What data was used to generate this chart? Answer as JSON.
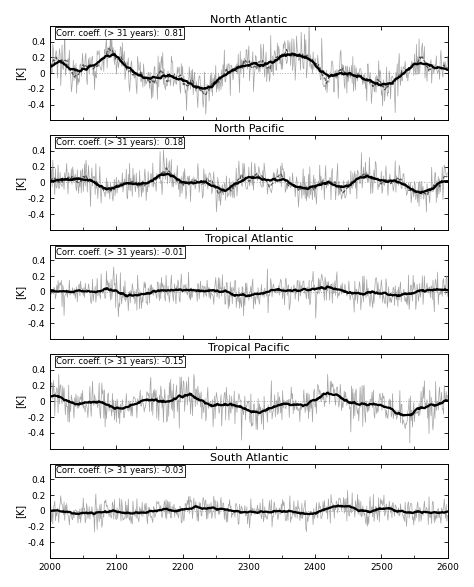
{
  "panels": [
    {
      "title": "North Atlantic",
      "corr": "Corr. coeff. (> 31 years):  0.81",
      "has_dashed": true,
      "noise_std": 0.14,
      "low_amp": 0.15,
      "low_period": 280,
      "low_phase": 0.0,
      "low_amp2": 0.08,
      "low_period2": 90,
      "low_phase2": 1.0,
      "trend": 0.0001
    },
    {
      "title": "North Pacific",
      "corr": "Corr. coeff. (> 31 years):  0.18",
      "has_dashed": true,
      "noise_std": 0.12,
      "low_amp": 0.06,
      "low_period": 150,
      "low_phase": 0.5,
      "low_amp2": 0.04,
      "low_period2": 60,
      "low_phase2": 2.0,
      "trend": 0.0
    },
    {
      "title": "Tropical Atlantic",
      "corr": "Corr. coeff. (> 31 years): -0.01",
      "has_dashed": false,
      "noise_std": 0.1,
      "low_amp": 0.03,
      "low_period": 200,
      "low_phase": 1.5,
      "low_amp2": 0.02,
      "low_period2": 80,
      "low_phase2": 0.5,
      "trend": 0.0
    },
    {
      "title": "Tropical Pacific",
      "corr": "Corr. coeff. (> 31 years): -0.15",
      "has_dashed": false,
      "noise_std": 0.13,
      "low_amp": 0.07,
      "low_period": 220,
      "low_phase": 2.0,
      "low_amp2": 0.04,
      "low_period2": 70,
      "low_phase2": 1.5,
      "trend": -8e-05
    },
    {
      "title": "South Atlantic",
      "corr": "Corr. coeff. (> 31 years): -0.03",
      "has_dashed": false,
      "noise_std": 0.09,
      "low_amp": 0.03,
      "low_period": 260,
      "low_phase": 3.0,
      "low_amp2": 0.02,
      "low_period2": 90,
      "low_phase2": 2.5,
      "trend": 0.0
    }
  ],
  "xmin": 2000,
  "xmax": 2600,
  "ymin": -0.6,
  "ymax": 0.6,
  "yticks": [
    -0.4,
    -0.2,
    0.0,
    0.2,
    0.4
  ],
  "ytick_labels": [
    "-0.4",
    "-0.2",
    "0",
    "0.2",
    "0.4"
  ],
  "xticks": [
    2000,
    2100,
    2200,
    2300,
    2400,
    2500,
    2600
  ],
  "ylabel": "[K]",
  "background_color": "#ffffff",
  "line_color_noisy": "#999999",
  "line_color_smooth": "#000000",
  "line_color_dashed": "#444444",
  "dotted_color": "#aaaaaa",
  "N_years": 601,
  "smooth_window_31yr": 31,
  "smooth_window_dashed": 11
}
